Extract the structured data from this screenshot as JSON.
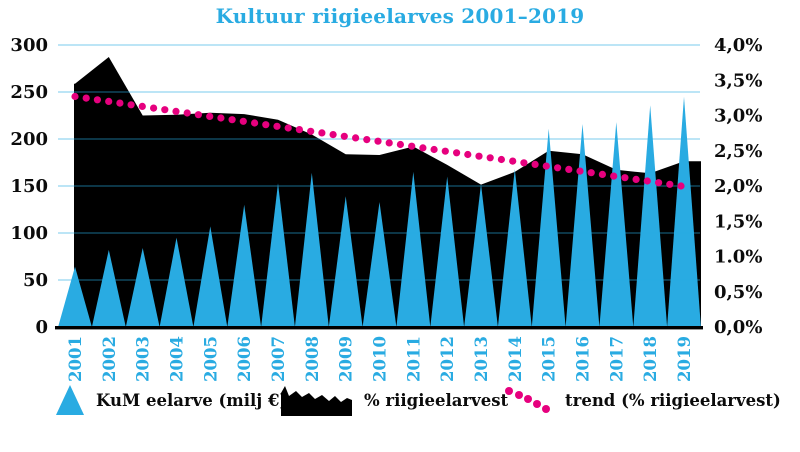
{
  "chart_data": {
    "type": "combo",
    "title": "Kultuur riigieelarves 2001–2019",
    "categories": [
      "2001",
      "2002",
      "2003",
      "2004",
      "2005",
      "2006",
      "2007",
      "2008",
      "2009",
      "2010",
      "2011",
      "2012",
      "2013",
      "2014",
      "2015",
      "2016",
      "2017",
      "2018",
      "2019"
    ],
    "series": [
      {
        "name": "KuM eelarve (milj €)",
        "type": "triangle_bar",
        "axis": "left",
        "color": "#29ABE2",
        "values": [
          64,
          82,
          84,
          95,
          107,
          130,
          153,
          164,
          139,
          133,
          165,
          160,
          152,
          168,
          211,
          216,
          218,
          236,
          245
        ]
      },
      {
        "name": "% riigieelarvest",
        "type": "area",
        "axis": "right",
        "color": "#000000",
        "values": [
          3.45,
          3.83,
          3.0,
          3.01,
          3.04,
          3.02,
          2.94,
          2.73,
          2.45,
          2.44,
          2.56,
          2.3,
          2.02,
          2.2,
          2.5,
          2.45,
          2.23,
          2.18,
          2.35
        ]
      },
      {
        "name": "trend (% riigieelarvest)",
        "type": "dotted_trend",
        "axis": "right",
        "color": "#E6007E",
        "trend_start": 3.27,
        "trend_end": 2.0
      }
    ],
    "left_axis": {
      "min": 0,
      "max": 300,
      "ticks": [
        "300",
        "250",
        "200",
        "150",
        "100",
        "50",
        "0"
      ]
    },
    "right_axis": {
      "min": 0,
      "max": 4.0,
      "ticks": [
        "4,0%",
        "3,5%",
        "3,0%",
        "2,5%",
        "2,0%",
        "1,5%",
        "1.0%",
        "0,5%",
        "0,0%"
      ]
    },
    "grid": true,
    "legend_position": "bottom"
  },
  "colors": {
    "accent_blue": "#29ABE2",
    "series_black": "#000000",
    "trend_magenta": "#E6007E",
    "background": "#FFFFFF"
  }
}
